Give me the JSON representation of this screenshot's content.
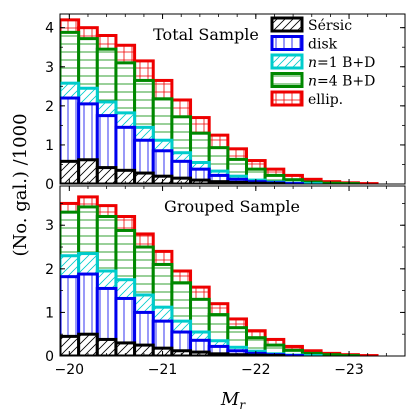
{
  "chart_data": {
    "type": "bar",
    "histtype": "stacked-step",
    "xlabel": "M_r",
    "ylabel": "(No. gal.) /1000",
    "xlim": [
      -19.9,
      -23.6
    ],
    "x_ticks": [
      -20,
      -21,
      -22,
      -23
    ],
    "x_tick_labels": [
      "−20",
      "−21",
      "−22",
      "−23"
    ],
    "bin_edges": [
      -19.9,
      -20.1,
      -20.3,
      -20.5,
      -20.7,
      -20.9,
      -21.1,
      -21.3,
      -21.5,
      -21.7,
      -21.9,
      -22.1,
      -22.3,
      -22.5,
      -22.7,
      -22.9,
      -23.1,
      -23.3,
      -23.5
    ],
    "legend": {
      "placement": "top-right",
      "entries": [
        {
          "label": "Sérsic",
          "color": "#000000",
          "hatch": "diagonal"
        },
        {
          "label": "disk",
          "color": "#0000ee",
          "hatch": "vertical"
        },
        {
          "label": "n=1 B+D",
          "color": "#00cccc",
          "hatch": "diagonal"
        },
        {
          "label": "n=4 B+D",
          "color": "#008800",
          "hatch": "horizontal"
        },
        {
          "label": "ellip.",
          "color": "#ee0000",
          "hatch": "grid"
        }
      ]
    },
    "panels": [
      {
        "title": "Total Sample",
        "ylim": [
          0,
          4.35
        ],
        "y_ticks": [
          0,
          1,
          2,
          3,
          4
        ],
        "series": [
          {
            "name": "Sérsic",
            "values": [
              0.58,
              0.62,
              0.42,
              0.35,
              0.28,
              0.2,
              0.15,
              0.1,
              0.06,
              0.04,
              0.02,
              0.01,
              0.0,
              0.0,
              0.0,
              0.0,
              0.0,
              0.0
            ]
          },
          {
            "name": "disk",
            "values": [
              2.2,
              2.05,
              1.75,
              1.45,
              1.12,
              0.85,
              0.58,
              0.38,
              0.22,
              0.12,
              0.06,
              0.03,
              0.01,
              0.0,
              0.0,
              0.0,
              0.0,
              0.0
            ]
          },
          {
            "name": "n=1 B+D",
            "values": [
              2.58,
              2.45,
              2.1,
              1.82,
              1.45,
              1.12,
              0.8,
              0.55,
              0.33,
              0.2,
              0.1,
              0.05,
              0.02,
              0.01,
              0.0,
              0.0,
              0.0,
              0.0
            ]
          },
          {
            "name": "n=4 B+D",
            "values": [
              3.88,
              3.72,
              3.45,
              3.1,
              2.65,
              2.18,
              1.72,
              1.3,
              0.93,
              0.63,
              0.38,
              0.22,
              0.11,
              0.05,
              0.02,
              0.01,
              0.0,
              0.0
            ]
          },
          {
            "name": "ellip.",
            "values": [
              4.2,
              4.0,
              3.8,
              3.55,
              3.15,
              2.65,
              2.15,
              1.7,
              1.25,
              0.9,
              0.6,
              0.38,
              0.22,
              0.12,
              0.06,
              0.03,
              0.01,
              0.0
            ]
          }
        ]
      },
      {
        "title": "Grouped Sample",
        "ylim": [
          0,
          3.9
        ],
        "y_ticks": [
          0,
          1,
          2,
          3
        ],
        "series": [
          {
            "name": "Sérsic",
            "values": [
              0.45,
              0.5,
              0.38,
              0.3,
              0.25,
              0.18,
              0.12,
              0.09,
              0.05,
              0.03,
              0.02,
              0.01,
              0.0,
              0.0,
              0.0,
              0.0,
              0.0,
              0.0
            ]
          },
          {
            "name": "disk",
            "values": [
              1.82,
              1.88,
              1.55,
              1.32,
              1.0,
              0.8,
              0.55,
              0.36,
              0.22,
              0.12,
              0.06,
              0.03,
              0.01,
              0.0,
              0.0,
              0.0,
              0.0,
              0.0
            ]
          },
          {
            "name": "n=1 B+D",
            "values": [
              2.3,
              2.35,
              1.95,
              1.75,
              1.4,
              1.12,
              0.8,
              0.55,
              0.35,
              0.2,
              0.11,
              0.05,
              0.02,
              0.01,
              0.0,
              0.0,
              0.0,
              0.0
            ]
          },
          {
            "name": "n=4 B+D",
            "values": [
              3.3,
              3.42,
              3.2,
              2.88,
              2.5,
              2.1,
              1.68,
              1.3,
              0.95,
              0.65,
              0.42,
              0.25,
              0.13,
              0.06,
              0.03,
              0.01,
              0.0,
              0.0
            ]
          },
          {
            "name": "ellip.",
            "values": [
              3.5,
              3.65,
              3.45,
              3.2,
              2.8,
              2.4,
              1.95,
              1.58,
              1.2,
              0.85,
              0.58,
              0.38,
              0.22,
              0.12,
              0.06,
              0.03,
              0.01,
              0.0
            ]
          }
        ]
      }
    ]
  }
}
